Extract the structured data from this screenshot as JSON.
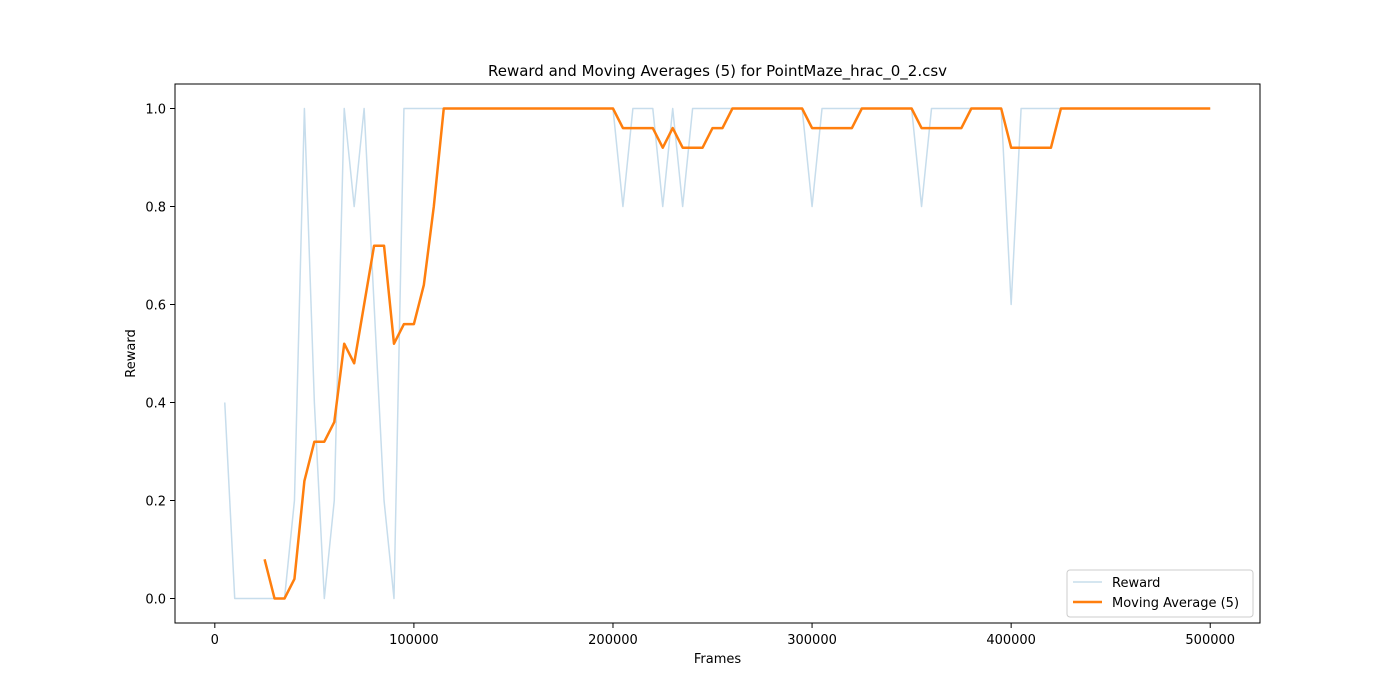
{
  "chart_data": {
    "type": "line",
    "title": "Reward and Moving Averages (5) for PointMaze_hrac_0_2.csv",
    "xlabel": "Frames",
    "ylabel": "Reward",
    "xlim": [
      -20000,
      525000
    ],
    "ylim": [
      -0.05,
      1.05
    ],
    "x_ticks": [
      0,
      100000,
      200000,
      300000,
      400000,
      500000
    ],
    "x_tick_labels": [
      "0",
      "100000",
      "200000",
      "300000",
      "400000",
      "500000"
    ],
    "y_ticks": [
      0.0,
      0.2,
      0.4,
      0.6,
      0.8,
      1.0
    ],
    "y_tick_labels": [
      "0.0",
      "0.2",
      "0.4",
      "0.6",
      "0.8",
      "1.0"
    ],
    "grid": false,
    "legend_position": "lower-right",
    "series": [
      {
        "name": "Reward",
        "color": "#1f77b4",
        "opacity": 0.25,
        "x": [
          5000,
          10000,
          15000,
          20000,
          25000,
          30000,
          35000,
          40000,
          45000,
          50000,
          55000,
          60000,
          65000,
          70000,
          75000,
          80000,
          85000,
          90000,
          95000,
          100000,
          105000,
          110000,
          115000,
          120000,
          125000,
          130000,
          135000,
          140000,
          145000,
          150000,
          155000,
          160000,
          165000,
          170000,
          175000,
          180000,
          185000,
          190000,
          195000,
          200000,
          205000,
          210000,
          215000,
          220000,
          225000,
          230000,
          235000,
          240000,
          245000,
          250000,
          255000,
          260000,
          265000,
          270000,
          275000,
          280000,
          285000,
          290000,
          295000,
          300000,
          305000,
          310000,
          315000,
          320000,
          325000,
          330000,
          335000,
          340000,
          345000,
          350000,
          355000,
          360000,
          365000,
          370000,
          375000,
          380000,
          385000,
          390000,
          395000,
          400000,
          405000,
          410000,
          415000,
          420000,
          425000,
          430000,
          435000,
          440000,
          445000,
          450000,
          455000,
          460000,
          465000,
          470000,
          475000,
          480000,
          485000,
          490000,
          495000,
          500000
        ],
        "y": [
          0.4,
          0,
          0,
          0,
          0,
          0,
          0,
          0.2,
          1,
          0.4,
          0,
          0.2,
          1,
          0.8,
          1,
          0.6,
          0.2,
          0,
          1,
          1,
          1,
          1,
          1,
          1,
          1,
          1,
          1,
          1,
          1,
          1,
          1,
          1,
          1,
          1,
          1,
          1,
          1,
          1,
          1,
          1,
          0.8,
          1,
          1,
          1,
          0.8,
          1,
          0.8,
          1,
          1,
          1,
          1,
          1,
          1,
          1,
          1,
          1,
          1,
          1,
          1,
          0.8,
          1,
          1,
          1,
          1,
          1,
          1,
          1,
          1,
          1,
          1,
          0.8,
          1,
          1,
          1,
          1,
          1,
          1,
          1,
          1,
          0.6,
          1,
          1,
          1,
          1,
          1,
          1,
          1,
          1,
          1,
          1,
          1,
          1,
          1,
          1,
          1,
          1,
          1,
          1,
          1,
          1
        ]
      },
      {
        "name": "Moving Average (5)",
        "color": "#ff7f0e",
        "opacity": 1,
        "x": [
          25000,
          30000,
          35000,
          40000,
          45000,
          50000,
          55000,
          60000,
          65000,
          70000,
          75000,
          80000,
          85000,
          90000,
          95000,
          100000,
          105000,
          110000,
          115000,
          120000,
          125000,
          130000,
          135000,
          140000,
          145000,
          150000,
          155000,
          160000,
          165000,
          170000,
          175000,
          180000,
          185000,
          190000,
          195000,
          200000,
          205000,
          210000,
          215000,
          220000,
          225000,
          230000,
          235000,
          240000,
          245000,
          250000,
          255000,
          260000,
          265000,
          270000,
          275000,
          280000,
          285000,
          290000,
          295000,
          300000,
          305000,
          310000,
          315000,
          320000,
          325000,
          330000,
          335000,
          340000,
          345000,
          350000,
          355000,
          360000,
          365000,
          370000,
          375000,
          380000,
          385000,
          390000,
          395000,
          400000,
          405000,
          410000,
          415000,
          420000,
          425000,
          430000,
          435000,
          440000,
          445000,
          450000,
          455000,
          460000,
          465000,
          470000,
          475000,
          480000,
          485000,
          490000,
          495000,
          500000
        ],
        "y": [
          0.08,
          0,
          0,
          0.04,
          0.24,
          0.32,
          0.32,
          0.36,
          0.52,
          0.48,
          0.6,
          0.72,
          0.72,
          0.52,
          0.56,
          0.56,
          0.64,
          0.8,
          1,
          1,
          1,
          1,
          1,
          1,
          1,
          1,
          1,
          1,
          1,
          1,
          1,
          1,
          1,
          1,
          1,
          1,
          0.96,
          0.96,
          0.96,
          0.96,
          0.92,
          0.96,
          0.92,
          0.92,
          0.92,
          0.96,
          0.96,
          1,
          1,
          1,
          1,
          1,
          1,
          1,
          1,
          0.96,
          0.96,
          0.96,
          0.96,
          0.96,
          1,
          1,
          1,
          1,
          1,
          1,
          0.96,
          0.96,
          0.96,
          0.96,
          0.96,
          1,
          1,
          1,
          1,
          0.92,
          0.92,
          0.92,
          0.92,
          0.92,
          1,
          1,
          1,
          1,
          1,
          1,
          1,
          1,
          1,
          1,
          1,
          1,
          1,
          1,
          1,
          1
        ]
      }
    ]
  }
}
